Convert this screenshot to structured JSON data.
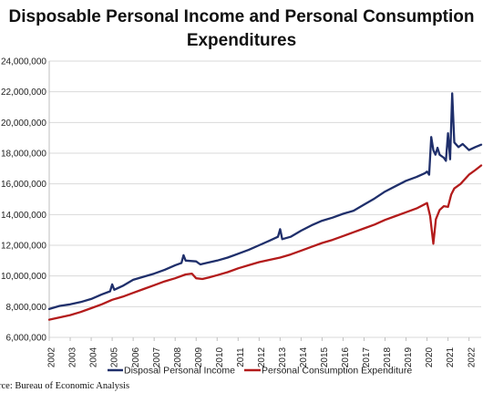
{
  "chart_data": {
    "type": "line",
    "title_line1": "Disposable Personal Income and Personal Consumption",
    "title_line2": "Expenditures",
    "yticks": [
      "6,000,000",
      "8,000,000",
      "10,000,000",
      "12,000,000",
      "14,000,000",
      "16,000,000",
      "18,000,000",
      "20,000,000",
      "22,000,000",
      "24,000,000"
    ],
    "ylim": [
      6000000,
      24000000
    ],
    "xticks": [
      "2002",
      "2003",
      "2004",
      "2005",
      "2006",
      "2007",
      "2008",
      "2009",
      "2010",
      "2011",
      "2012",
      "2013",
      "2014",
      "2015",
      "2016",
      "2017",
      "2018",
      "2019",
      "2020",
      "2021",
      "2022"
    ],
    "xlim": [
      2002.0,
      2022.58
    ],
    "grid": "horizontal",
    "legend_position": "bottom",
    "series": [
      {
        "name": "Disposal Personal Income",
        "color": "#1f2f6b",
        "points": [
          [
            2002.0,
            7850000
          ],
          [
            2002.5,
            8050000
          ],
          [
            2003.0,
            8150000
          ],
          [
            2003.5,
            8300000
          ],
          [
            2004.0,
            8500000
          ],
          [
            2004.5,
            8800000
          ],
          [
            2004.9,
            9000000
          ],
          [
            2005.0,
            9450000
          ],
          [
            2005.1,
            9100000
          ],
          [
            2005.5,
            9350000
          ],
          [
            2006.0,
            9750000
          ],
          [
            2006.5,
            9950000
          ],
          [
            2007.0,
            10150000
          ],
          [
            2007.5,
            10400000
          ],
          [
            2008.0,
            10700000
          ],
          [
            2008.3,
            10850000
          ],
          [
            2008.4,
            11350000
          ],
          [
            2008.5,
            11000000
          ],
          [
            2009.0,
            10950000
          ],
          [
            2009.2,
            10750000
          ],
          [
            2009.5,
            10850000
          ],
          [
            2010.0,
            11000000
          ],
          [
            2010.5,
            11200000
          ],
          [
            2011.0,
            11450000
          ],
          [
            2011.5,
            11700000
          ],
          [
            2012.0,
            12000000
          ],
          [
            2012.5,
            12300000
          ],
          [
            2012.9,
            12550000
          ],
          [
            2013.0,
            13050000
          ],
          [
            2013.1,
            12400000
          ],
          [
            2013.5,
            12550000
          ],
          [
            2014.0,
            12950000
          ],
          [
            2014.5,
            13300000
          ],
          [
            2015.0,
            13600000
          ],
          [
            2015.5,
            13800000
          ],
          [
            2016.0,
            14050000
          ],
          [
            2016.5,
            14250000
          ],
          [
            2017.0,
            14650000
          ],
          [
            2017.5,
            15050000
          ],
          [
            2018.0,
            15500000
          ],
          [
            2018.5,
            15850000
          ],
          [
            2019.0,
            16200000
          ],
          [
            2019.5,
            16450000
          ],
          [
            2019.9,
            16700000
          ],
          [
            2020.0,
            16800000
          ],
          [
            2020.1,
            16600000
          ],
          [
            2020.2,
            19050000
          ],
          [
            2020.3,
            18200000
          ],
          [
            2020.4,
            17900000
          ],
          [
            2020.5,
            18350000
          ],
          [
            2020.6,
            17900000
          ],
          [
            2020.8,
            17700000
          ],
          [
            2020.9,
            17500000
          ],
          [
            2021.0,
            19300000
          ],
          [
            2021.1,
            17600000
          ],
          [
            2021.2,
            21900000
          ],
          [
            2021.3,
            18700000
          ],
          [
            2021.5,
            18400000
          ],
          [
            2021.7,
            18600000
          ],
          [
            2022.0,
            18200000
          ],
          [
            2022.3,
            18400000
          ],
          [
            2022.58,
            18550000
          ]
        ]
      },
      {
        "name": "Personal Consumption Expenditure",
        "color": "#b31b1b",
        "points": [
          [
            2002.0,
            7150000
          ],
          [
            2002.5,
            7300000
          ],
          [
            2003.0,
            7450000
          ],
          [
            2003.5,
            7650000
          ],
          [
            2004.0,
            7900000
          ],
          [
            2004.5,
            8150000
          ],
          [
            2005.0,
            8450000
          ],
          [
            2005.5,
            8650000
          ],
          [
            2006.0,
            8900000
          ],
          [
            2006.5,
            9150000
          ],
          [
            2007.0,
            9400000
          ],
          [
            2007.5,
            9650000
          ],
          [
            2008.0,
            9850000
          ],
          [
            2008.5,
            10100000
          ],
          [
            2008.8,
            10150000
          ],
          [
            2009.0,
            9850000
          ],
          [
            2009.3,
            9800000
          ],
          [
            2009.6,
            9900000
          ],
          [
            2010.0,
            10050000
          ],
          [
            2010.5,
            10250000
          ],
          [
            2011.0,
            10500000
          ],
          [
            2011.5,
            10700000
          ],
          [
            2012.0,
            10900000
          ],
          [
            2012.5,
            11050000
          ],
          [
            2013.0,
            11200000
          ],
          [
            2013.5,
            11400000
          ],
          [
            2014.0,
            11650000
          ],
          [
            2014.5,
            11900000
          ],
          [
            2015.0,
            12150000
          ],
          [
            2015.5,
            12350000
          ],
          [
            2016.0,
            12600000
          ],
          [
            2016.5,
            12850000
          ],
          [
            2017.0,
            13100000
          ],
          [
            2017.5,
            13350000
          ],
          [
            2018.0,
            13650000
          ],
          [
            2018.5,
            13900000
          ],
          [
            2019.0,
            14150000
          ],
          [
            2019.5,
            14400000
          ],
          [
            2020.0,
            14750000
          ],
          [
            2020.15,
            13900000
          ],
          [
            2020.3,
            12100000
          ],
          [
            2020.42,
            13700000
          ],
          [
            2020.6,
            14300000
          ],
          [
            2020.8,
            14550000
          ],
          [
            2021.0,
            14500000
          ],
          [
            2021.15,
            15300000
          ],
          [
            2021.3,
            15700000
          ],
          [
            2021.6,
            16000000
          ],
          [
            2022.0,
            16600000
          ],
          [
            2022.3,
            16900000
          ],
          [
            2022.58,
            17200000
          ]
        ]
      }
    ],
    "source": "rce: Bureau of Economic Analysis"
  }
}
